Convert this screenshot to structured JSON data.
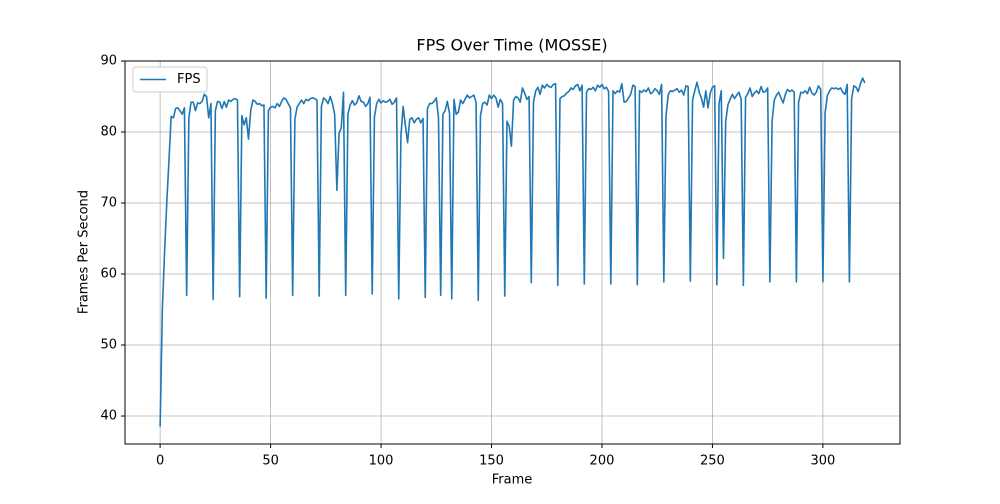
{
  "chart_data": {
    "type": "line",
    "title": "FPS Over Time (MOSSE)",
    "xlabel": "Frame",
    "ylabel": "Frames Per Second",
    "x": [
      0,
      1,
      2,
      3,
      4,
      5,
      6,
      7,
      8,
      9,
      10,
      11,
      12,
      13,
      14,
      15,
      16,
      17,
      18,
      19,
      20,
      21,
      22,
      23,
      24,
      25,
      26,
      27,
      28,
      29,
      30,
      31,
      32,
      33,
      34,
      35,
      36,
      37,
      38,
      39,
      40,
      41,
      42,
      43,
      44,
      45,
      46,
      47,
      48,
      49,
      50,
      51,
      52,
      53,
      54,
      55,
      56,
      57,
      58,
      59,
      60,
      61,
      62,
      63,
      64,
      65,
      66,
      67,
      68,
      69,
      70,
      71,
      72,
      73,
      74,
      75,
      76,
      77,
      78,
      79,
      80,
      81,
      82,
      83,
      84,
      85,
      86,
      87,
      88,
      89,
      90,
      91,
      92,
      93,
      94,
      95,
      96,
      97,
      98,
      99,
      100,
      101,
      102,
      103,
      104,
      105,
      106,
      107,
      108,
      109,
      110,
      111,
      112,
      113,
      114,
      115,
      116,
      117,
      118,
      119,
      120,
      121,
      122,
      123,
      124,
      125,
      126,
      127,
      128,
      129,
      130,
      131,
      132,
      133,
      134,
      135,
      136,
      137,
      138,
      139,
      140,
      141,
      142,
      143,
      144,
      145,
      146,
      147,
      148,
      149,
      150,
      151,
      152,
      153,
      154,
      155,
      156,
      157,
      158,
      159,
      160,
      161,
      162,
      163,
      164,
      165,
      166,
      167,
      168,
      169,
      170,
      171,
      172,
      173,
      174,
      175,
      176,
      177,
      178,
      179,
      180,
      181,
      182,
      183,
      184,
      185,
      186,
      187,
      188,
      189,
      190,
      191,
      192,
      193,
      194,
      195,
      196,
      197,
      198,
      199,
      200,
      201,
      202,
      203,
      204,
      205,
      206,
      207,
      208,
      209,
      210,
      211,
      212,
      213,
      214,
      215,
      216,
      217,
      218,
      219,
      220,
      221,
      222,
      223,
      224,
      225,
      226,
      227,
      228,
      229,
      230,
      231,
      232,
      233,
      234,
      235,
      236,
      237,
      238,
      239,
      240,
      241,
      242,
      243,
      244,
      245,
      246,
      247,
      248,
      249,
      250,
      251,
      252,
      253,
      254,
      255,
      256,
      257,
      258,
      259,
      260,
      261,
      262,
      263,
      264,
      265,
      266,
      267,
      268,
      269,
      270,
      271,
      272,
      273,
      274,
      275,
      276,
      277,
      278,
      279,
      280,
      281,
      282,
      283,
      284,
      285,
      286,
      287,
      288,
      289,
      290,
      291,
      292,
      293,
      294,
      295,
      296,
      297,
      298,
      299,
      300,
      301,
      302,
      303,
      304,
      305,
      306,
      307,
      308,
      309,
      310,
      311,
      312,
      313,
      314,
      315,
      316,
      317,
      318,
      319
    ],
    "series": [
      {
        "name": "FPS",
        "color": "#1f77b4",
        "values": [
          38.5,
          55,
          63,
          70,
          76,
          82.2,
          82,
          83.3,
          83.4,
          83,
          82.5,
          83.4,
          57,
          82,
          84.2,
          84.2,
          83,
          84.1,
          84,
          84.3,
          85.3,
          85,
          82,
          84,
          56.4,
          83,
          84.3,
          84.2,
          83.3,
          84.3,
          83.5,
          84.5,
          84.3,
          84.6,
          84.7,
          84.5,
          56.8,
          82.3,
          81,
          82,
          79,
          83,
          84.5,
          84.3,
          83.9,
          84,
          83.7,
          83.8,
          56.6,
          83,
          83.5,
          83.6,
          83.4,
          84,
          83.6,
          84.3,
          84.8,
          84.6,
          84,
          83.4,
          57,
          81.8,
          83.5,
          84,
          84.5,
          84,
          84.6,
          84.4,
          84.7,
          84.8,
          84.7,
          84.5,
          56.9,
          83.6,
          84.8,
          84.5,
          84,
          85,
          84,
          82.5,
          71.8,
          79.8,
          80.6,
          85.6,
          57,
          82.5,
          83.8,
          84.4,
          83.8,
          84.1,
          85.1,
          84.3,
          84.2,
          83.6,
          84,
          84.9,
          57.2,
          82.1,
          84,
          84.6,
          84.1,
          84.4,
          84.2,
          84.3,
          84.6,
          83.9,
          84.2,
          84.8,
          56.5,
          79.5,
          83.6,
          81,
          78.5,
          81.8,
          82,
          81.3,
          81.8,
          82,
          81.3,
          81.9,
          56.7,
          83.3,
          84,
          84,
          84.3,
          84.8,
          82,
          57,
          82.5,
          83,
          84.3,
          82.6,
          56.5,
          84.6,
          82.5,
          82.8,
          84.5,
          84,
          84.6,
          85.2,
          84.8,
          85,
          85.2,
          84.2,
          56.3,
          82.3,
          84,
          84.2,
          83.8,
          85.2,
          84.7,
          85.2,
          84.8,
          83.5,
          84.6,
          84,
          56.9,
          81.5,
          80.8,
          78,
          84.5,
          85,
          84.8,
          84.2,
          86.2,
          85.5,
          84.6,
          85,
          58.8,
          84.2,
          85.8,
          86.3,
          85.3,
          86.6,
          86.2,
          86.7,
          86.4,
          86.3,
          86.7,
          86.8,
          58.4,
          84.7,
          85,
          85.1,
          85.5,
          85.7,
          86.2,
          86,
          86.5,
          86.7,
          85.8,
          86.6,
          58.6,
          85.6,
          86.1,
          86,
          86.3,
          85.8,
          86.6,
          86.3,
          86.7,
          86.1,
          86.3,
          85.7,
          58.6,
          85.8,
          85.4,
          85.8,
          85.6,
          86.8,
          84.2,
          84.3,
          84.8,
          85.3,
          86.6,
          86.4,
          58.5,
          85.8,
          85.6,
          85.9,
          85.7,
          86.2,
          85.4,
          85.6,
          86.1,
          85.8,
          85.3,
          86.7,
          58.9,
          82.3,
          85.3,
          85.8,
          85.7,
          85.9,
          86.1,
          85.6,
          85.9,
          85.2,
          86.5,
          86.4,
          59,
          84.5,
          85.8,
          87,
          85.6,
          84.8,
          83.5,
          85.8,
          83.4,
          85.5,
          86.3,
          86.5,
          58.5,
          84,
          85.8,
          62.2,
          81.5,
          83.8,
          84.6,
          85.3,
          84.7,
          85.2,
          85.6,
          84.6,
          58.4,
          84.9,
          85.4,
          86.2,
          85,
          85.5,
          85.8,
          85.4,
          86.4,
          85.6,
          85.7,
          86.2,
          58.9,
          81.5,
          84.5,
          85.2,
          85.6,
          84.8,
          84.1,
          85.3,
          86,
          85.7,
          85.9,
          85.6,
          58.9,
          84.2,
          85.6,
          85.5,
          85.8,
          85.4,
          86.3,
          85.5,
          85.2,
          85.6,
          86.5,
          86,
          58.9,
          82.7,
          85.1,
          85.8,
          86.2,
          86.1,
          86.2,
          86,
          86.2,
          85.6,
          85.3,
          86.7,
          58.9,
          84.7,
          86.5,
          86.3,
          85.7,
          86.8,
          87.6,
          86.9
        ]
      }
    ],
    "xlim": [
      -15.9,
      334.9
    ],
    "xticks": [
      0,
      50,
      100,
      150,
      200,
      250,
      300
    ],
    "ylim": [
      36.06,
      90
    ],
    "yticks": [
      40,
      50,
      60,
      70,
      80,
      90
    ],
    "grid": true,
    "legend": "upper left"
  }
}
